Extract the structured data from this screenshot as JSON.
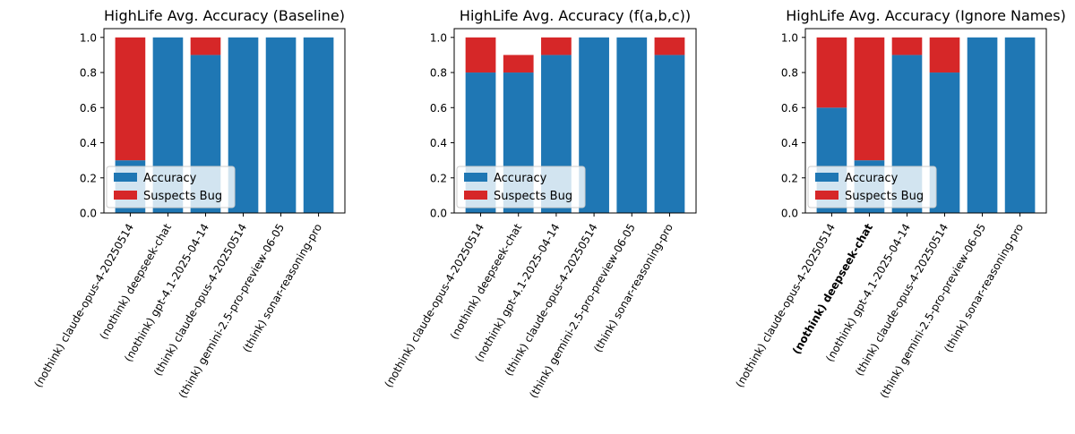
{
  "colors": {
    "accuracy": "#1f77b4",
    "suspects_bug": "#d62728"
  },
  "chart_data": [
    {
      "type": "bar",
      "stacked": true,
      "title": "HighLife Avg. Accuracy (Baseline)",
      "categories": [
        "(nothink) claude-opus-4-20250514",
        "(nothink) deepseek-chat",
        "(nothink) gpt-4.1-2025-04-14",
        "(think) claude-opus-4-20250514",
        "(think) gemini-2.5-pro-preview-06-05",
        "(think) sonar-reasoning-pro"
      ],
      "bold_categories": [],
      "series": [
        {
          "name": "Accuracy",
          "values": [
            0.3,
            1.0,
            0.9,
            1.0,
            1.0,
            1.0
          ]
        },
        {
          "name": "Suspects Bug",
          "values": [
            0.7,
            0.0,
            0.1,
            0.0,
            0.0,
            0.0
          ]
        }
      ],
      "ylim": [
        0,
        1.05
      ],
      "yticks": [
        "0.0",
        "0.2",
        "0.4",
        "0.6",
        "0.8",
        "1.0"
      ],
      "legend": "lower-left",
      "xlabel": "",
      "ylabel": ""
    },
    {
      "type": "bar",
      "stacked": true,
      "title": "HighLife Avg. Accuracy (f(a,b,c))",
      "categories": [
        "(nothink) claude-opus-4-20250514",
        "(nothink) deepseek-chat",
        "(nothink) gpt-4.1-2025-04-14",
        "(think) claude-opus-4-20250514",
        "(think) gemini-2.5-pro-preview-06-05",
        "(think) sonar-reasoning-pro"
      ],
      "bold_categories": [],
      "series": [
        {
          "name": "Accuracy",
          "values": [
            0.8,
            0.8,
            0.9,
            1.0,
            1.0,
            0.9
          ]
        },
        {
          "name": "Suspects Bug",
          "values": [
            0.2,
            0.1,
            0.1,
            0.0,
            0.0,
            0.1
          ]
        }
      ],
      "ylim": [
        0,
        1.05
      ],
      "yticks": [
        "0.0",
        "0.2",
        "0.4",
        "0.6",
        "0.8",
        "1.0"
      ],
      "legend": "lower-left",
      "xlabel": "",
      "ylabel": ""
    },
    {
      "type": "bar",
      "stacked": true,
      "title": "HighLife Avg. Accuracy (Ignore Names)",
      "categories": [
        "(nothink) claude-opus-4-20250514",
        "(nothink) deepseek-chat",
        "(nothink) gpt-4.1-2025-04-14",
        "(think) claude-opus-4-20250514",
        "(think) gemini-2.5-pro-preview-06-05",
        "(think) sonar-reasoning-pro"
      ],
      "bold_categories": [
        "(nothink) deepseek-chat"
      ],
      "series": [
        {
          "name": "Accuracy",
          "values": [
            0.6,
            0.3,
            0.9,
            0.8,
            1.0,
            1.0
          ]
        },
        {
          "name": "Suspects Bug",
          "values": [
            0.4,
            0.7,
            0.1,
            0.2,
            0.0,
            0.0
          ]
        }
      ],
      "ylim": [
        0,
        1.05
      ],
      "yticks": [
        "0.0",
        "0.2",
        "0.4",
        "0.6",
        "0.8",
        "1.0"
      ],
      "legend": "lower-left",
      "xlabel": "",
      "ylabel": ""
    }
  ]
}
